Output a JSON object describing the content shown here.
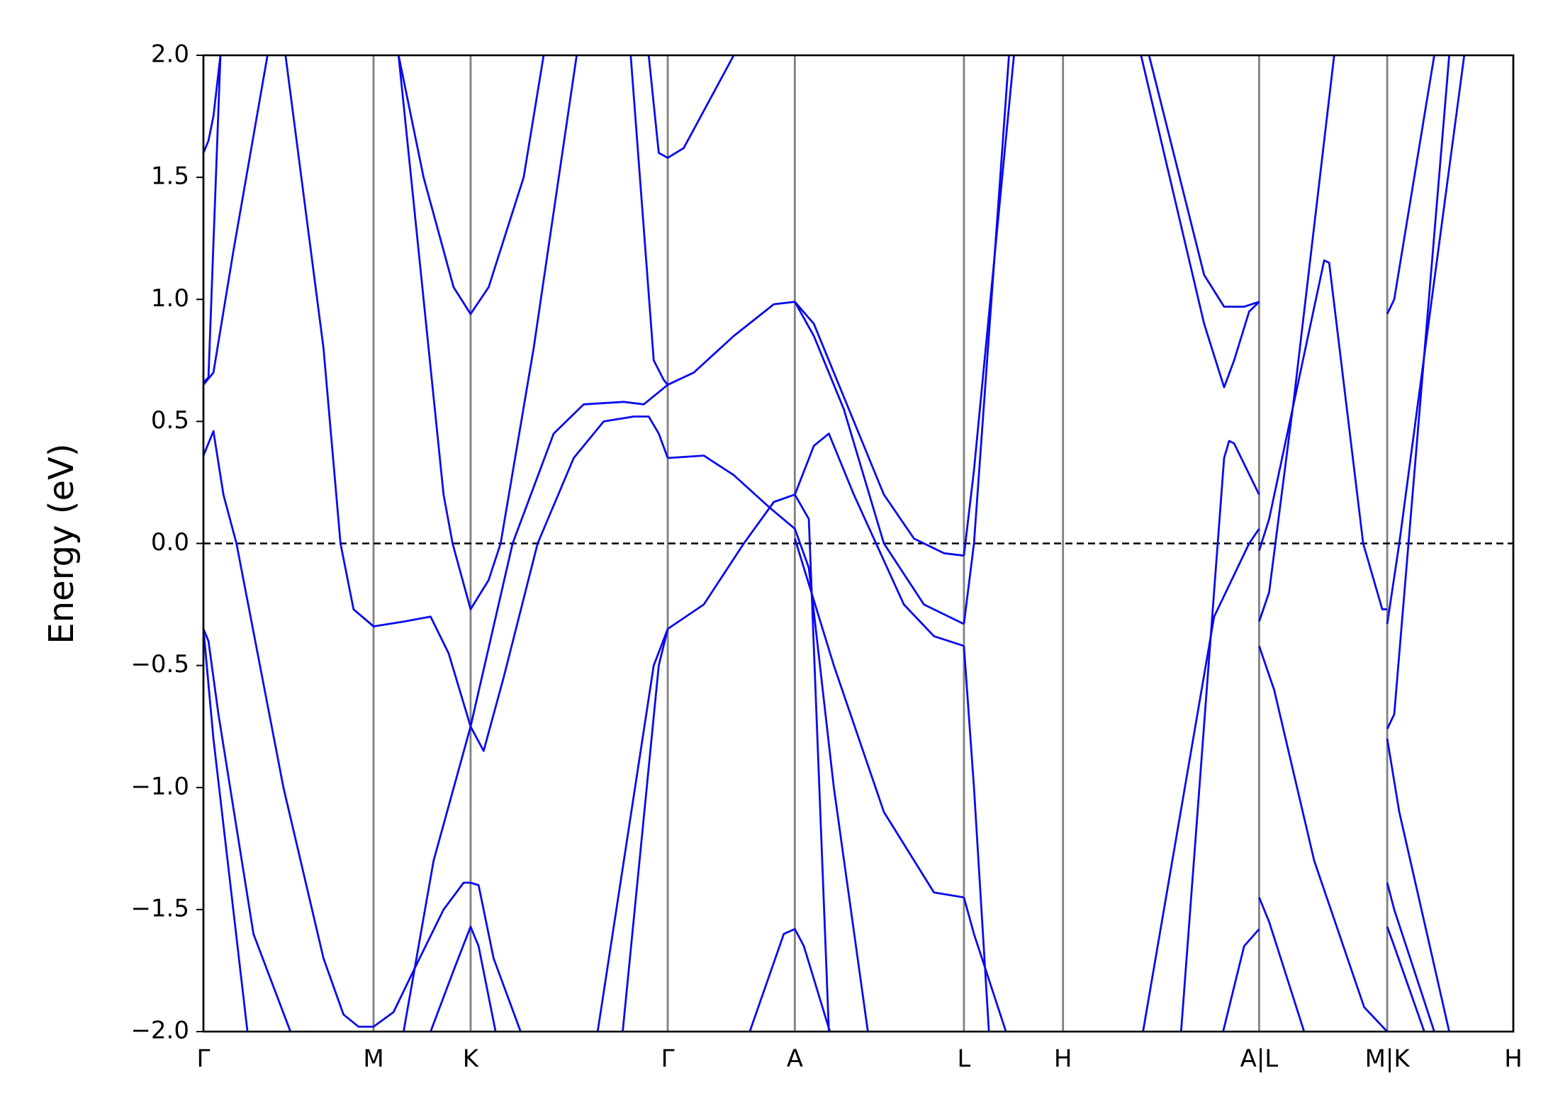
{
  "chart_data": {
    "type": "line",
    "ylabel": "Energy (eV)",
    "color": "#0a0aee",
    "grid_color": "#808080",
    "reference_line": 0,
    "xlim": [
      0,
      13.09
    ],
    "ylim": [
      -2.0,
      2.0
    ],
    "xticks": [
      {
        "value": 0,
        "label": "Γ"
      },
      {
        "value": 1.7,
        "label": "M"
      },
      {
        "value": 2.67,
        "label": "K"
      },
      {
        "value": 4.64,
        "label": "Γ"
      },
      {
        "value": 5.91,
        "label": "A"
      },
      {
        "value": 7.6,
        "label": "L"
      },
      {
        "value": 8.59,
        "label": "H"
      },
      {
        "value": 10.55,
        "label": "A|L"
      },
      {
        "value": 11.83,
        "label": "M|K"
      },
      {
        "value": 13.09,
        "label": "H"
      }
    ],
    "yticks": [
      {
        "value": -2.0,
        "label": "−2.0"
      },
      {
        "value": -1.5,
        "label": "−1.5"
      },
      {
        "value": -1.0,
        "label": "−1.0"
      },
      {
        "value": -0.5,
        "label": "−0.5"
      },
      {
        "value": 0,
        "label": "0.0"
      },
      {
        "value": 0.5,
        "label": "0.5"
      },
      {
        "value": 1.0,
        "label": "1.0"
      },
      {
        "value": 1.5,
        "label": "1.5"
      },
      {
        "value": 2.0,
        "label": "2.0"
      }
    ],
    "series": [
      {
        "x": [
          0,
          0.05,
          0.1,
          0.17
        ],
        "values": [
          1.6,
          1.65,
          1.75,
          2.0
        ]
      },
      {
        "x": [
          0,
          0.05,
          0.17
        ],
        "values": [
          0.66,
          0.68,
          2.0
        ]
      },
      {
        "x": [
          0,
          0.1,
          0.3,
          0.64
        ],
        "values": [
          0.65,
          0.7,
          1.2,
          2.0
        ]
      },
      {
        "x": [
          0,
          0.1,
          0.2,
          0.33,
          0.8,
          1.2,
          1.4,
          1.55,
          1.7,
          1.9,
          2.1,
          2.4,
          2.6,
          2.67,
          2.75,
          2.9,
          3.17
        ],
        "values": [
          0.36,
          0.46,
          0.2,
          0,
          -1.0,
          -1.7,
          -1.93,
          -1.98,
          -1.98,
          -1.92,
          -1.75,
          -1.5,
          -1.39,
          -1.39,
          -1.4,
          -1.7,
          -2.0
        ]
      },
      {
        "x": [
          0,
          0.05,
          0.15,
          0.5,
          0.87
        ],
        "values": [
          -0.35,
          -0.4,
          -0.7,
          -1.6,
          -2.0
        ]
      },
      {
        "x": [
          0,
          0.1,
          0.44
        ],
        "values": [
          -0.35,
          -0.8,
          -2.0
        ]
      },
      {
        "x": [
          0.82,
          1.2,
          1.37,
          1.5,
          1.7,
          2.0,
          2.27,
          2.45,
          2.67,
          2.8,
          3.0,
          3.34,
          3.7,
          4.0,
          4.3,
          4.45,
          4.55,
          4.64
        ],
        "values": [
          2.0,
          0.8,
          0,
          -0.27,
          -0.34,
          -0.32,
          -0.3,
          -0.45,
          -0.75,
          -0.85,
          -0.55,
          0,
          0.35,
          0.5,
          0.52,
          0.52,
          0.45,
          0.35
        ]
      },
      {
        "x": [
          2.0,
          2.3,
          2.67,
          3.09,
          3.5,
          3.8,
          4.2,
          4.4,
          4.55,
          4.64
        ],
        "values": [
          -2.0,
          -1.3,
          -0.75,
          0,
          0.45,
          0.57,
          0.58,
          0.57,
          0.62,
          0.65
        ]
      },
      {
        "x": [
          1.95,
          2.2,
          2.5,
          2.67,
          2.85,
          3.2,
          3.4
        ],
        "values": [
          2.0,
          1.5,
          1.05,
          0.94,
          1.05,
          1.5,
          2.0
        ]
      },
      {
        "x": [
          1.95,
          2.2,
          2.4,
          2.49,
          2.67,
          2.85,
          2.97,
          3.3,
          3.73
        ],
        "values": [
          2.0,
          1.0,
          0.2,
          0,
          -0.27,
          -0.15,
          0,
          0.8,
          2.0
        ]
      },
      {
        "x": [
          2.27,
          2.5,
          2.67,
          2.75,
          2.92
        ],
        "values": [
          -2.0,
          -1.75,
          -1.57,
          -1.65,
          -2.0
        ]
      },
      {
        "x": [
          3.94,
          4.5,
          4.64
        ],
        "values": [
          -2.0,
          -0.5,
          -0.35
        ]
      },
      {
        "x": [
          4.19,
          4.55,
          4.64
        ],
        "values": [
          -2.0,
          -0.5,
          -0.35
        ]
      },
      {
        "x": [
          4.27,
          4.5,
          4.6,
          4.64
        ],
        "values": [
          2.0,
          0.75,
          0.67,
          0.65
        ]
      },
      {
        "x": [
          4.45,
          4.55,
          4.64,
          4.8,
          5.3
        ],
        "values": [
          2.0,
          1.6,
          1.58,
          1.62,
          2.0
        ]
      },
      {
        "x": [
          4.64,
          4.9,
          5.3,
          5.7,
          5.91,
          6.1,
          6.4,
          6.8,
          7.1,
          7.4,
          7.6
        ],
        "values": [
          0.65,
          0.7,
          0.85,
          0.98,
          0.99,
          0.9,
          0.6,
          0.2,
          0.02,
          -0.04,
          -0.05
        ]
      },
      {
        "x": [
          5.91,
          6.1,
          6.4,
          6.8,
          7.2,
          7.6
        ],
        "values": [
          0.99,
          0.85,
          0.55,
          0,
          -0.25,
          -0.33
        ]
      },
      {
        "x": [
          4.64,
          5.0,
          5.3,
          5.65,
          5.91,
          6.05,
          6.3,
          6.64
        ],
        "values": [
          0.35,
          0.36,
          0.28,
          0.15,
          0.06,
          -0.1,
          -1.0,
          -2.0
        ]
      },
      {
        "x": [
          4.64,
          5.0,
          5.4,
          5.7,
          5.91,
          6.05,
          6.25
        ],
        "values": [
          -0.35,
          -0.25,
          0,
          0.17,
          0.2,
          0.1,
          -2.0
        ]
      },
      {
        "x": [
          5.46,
          5.8,
          5.91,
          6.0,
          6.26
        ],
        "values": [
          -2.0,
          -1.6,
          -1.58,
          -1.65,
          -2.0
        ]
      },
      {
        "x": [
          5.91,
          6.1,
          6.25,
          6.5,
          7.0,
          7.3,
          7.6
        ],
        "values": [
          0.2,
          0.4,
          0.45,
          0.2,
          -0.25,
          -0.38,
          -0.42
        ]
      },
      {
        "x": [
          5.91,
          6.3,
          6.8,
          7.3,
          7.6
        ],
        "values": [
          0.02,
          -0.5,
          -1.1,
          -1.43,
          -1.45
        ]
      },
      {
        "x": [
          7.6,
          7.7,
          8.1
        ],
        "values": [
          -0.05,
          0.3,
          2.0
        ]
      },
      {
        "x": [
          7.6,
          7.7,
          8.05
        ],
        "values": [
          -0.33,
          0,
          2.0
        ]
      },
      {
        "x": [
          7.6,
          7.7,
          7.85
        ],
        "values": [
          -0.42,
          -1.0,
          -2.0
        ]
      },
      {
        "x": [
          7.6,
          7.7,
          8.02
        ],
        "values": [
          -1.45,
          -1.6,
          -2.0
        ]
      },
      {
        "x": [
          9.37,
          10.0,
          10.2,
          10.3,
          10.45,
          10.55
        ],
        "values": [
          2.0,
          0.9,
          0.64,
          0.75,
          0.95,
          0.99
        ]
      },
      {
        "x": [
          9.45,
          10.0,
          10.2,
          10.4,
          10.55
        ],
        "values": [
          2.0,
          1.1,
          0.97,
          0.97,
          0.99
        ]
      },
      {
        "x": [
          9.77,
          10.2,
          10.25,
          10.3,
          10.55
        ],
        "values": [
          -2.0,
          0.35,
          0.42,
          0.41,
          0.2
        ]
      },
      {
        "x": [
          9.39,
          10.1,
          10.45,
          10.55
        ],
        "values": [
          -2.0,
          -0.3,
          0,
          0.06
        ]
      },
      {
        "x": [
          10.19,
          10.4,
          10.55
        ],
        "values": [
          -2.0,
          -1.65,
          -1.58
        ]
      },
      {
        "x": [
          10.55,
          10.65,
          11.2,
          11.25,
          11.59,
          11.78,
          11.83
        ],
        "values": [
          -0.03,
          0.1,
          1.16,
          1.15,
          0,
          -0.27,
          -0.27
        ]
      },
      {
        "x": [
          10.55,
          10.65,
          10.9,
          11.3
        ],
        "values": [
          -0.32,
          -0.2,
          0.6,
          2.0
        ]
      },
      {
        "x": [
          10.55,
          10.7,
          11.1,
          11.6,
          11.83
        ],
        "values": [
          -0.42,
          -0.6,
          -1.3,
          -1.9,
          -2.0
        ]
      },
      {
        "x": [
          10.55,
          10.65,
          11.0
        ],
        "values": [
          -1.45,
          -1.55,
          -2.0
        ]
      },
      {
        "x": [
          11.83,
          11.9,
          12.3
        ],
        "values": [
          0.94,
          1.0,
          2.0
        ]
      },
      {
        "x": [
          11.83,
          11.95,
          12.6
        ],
        "values": [
          -0.33,
          0,
          2.0
        ]
      },
      {
        "x": [
          11.83,
          11.9,
          12.45
        ],
        "values": [
          -0.76,
          -0.7,
          2.0
        ]
      },
      {
        "x": [
          11.83,
          11.95,
          12.45
        ],
        "values": [
          -0.8,
          -1.1,
          -2.0
        ]
      },
      {
        "x": [
          11.83,
          11.9,
          12.3
        ],
        "values": [
          -1.39,
          -1.5,
          -2.0
        ]
      },
      {
        "x": [
          11.83,
          11.9,
          12.2
        ],
        "values": [
          -1.57,
          -1.65,
          -2.0
        ]
      }
    ]
  }
}
